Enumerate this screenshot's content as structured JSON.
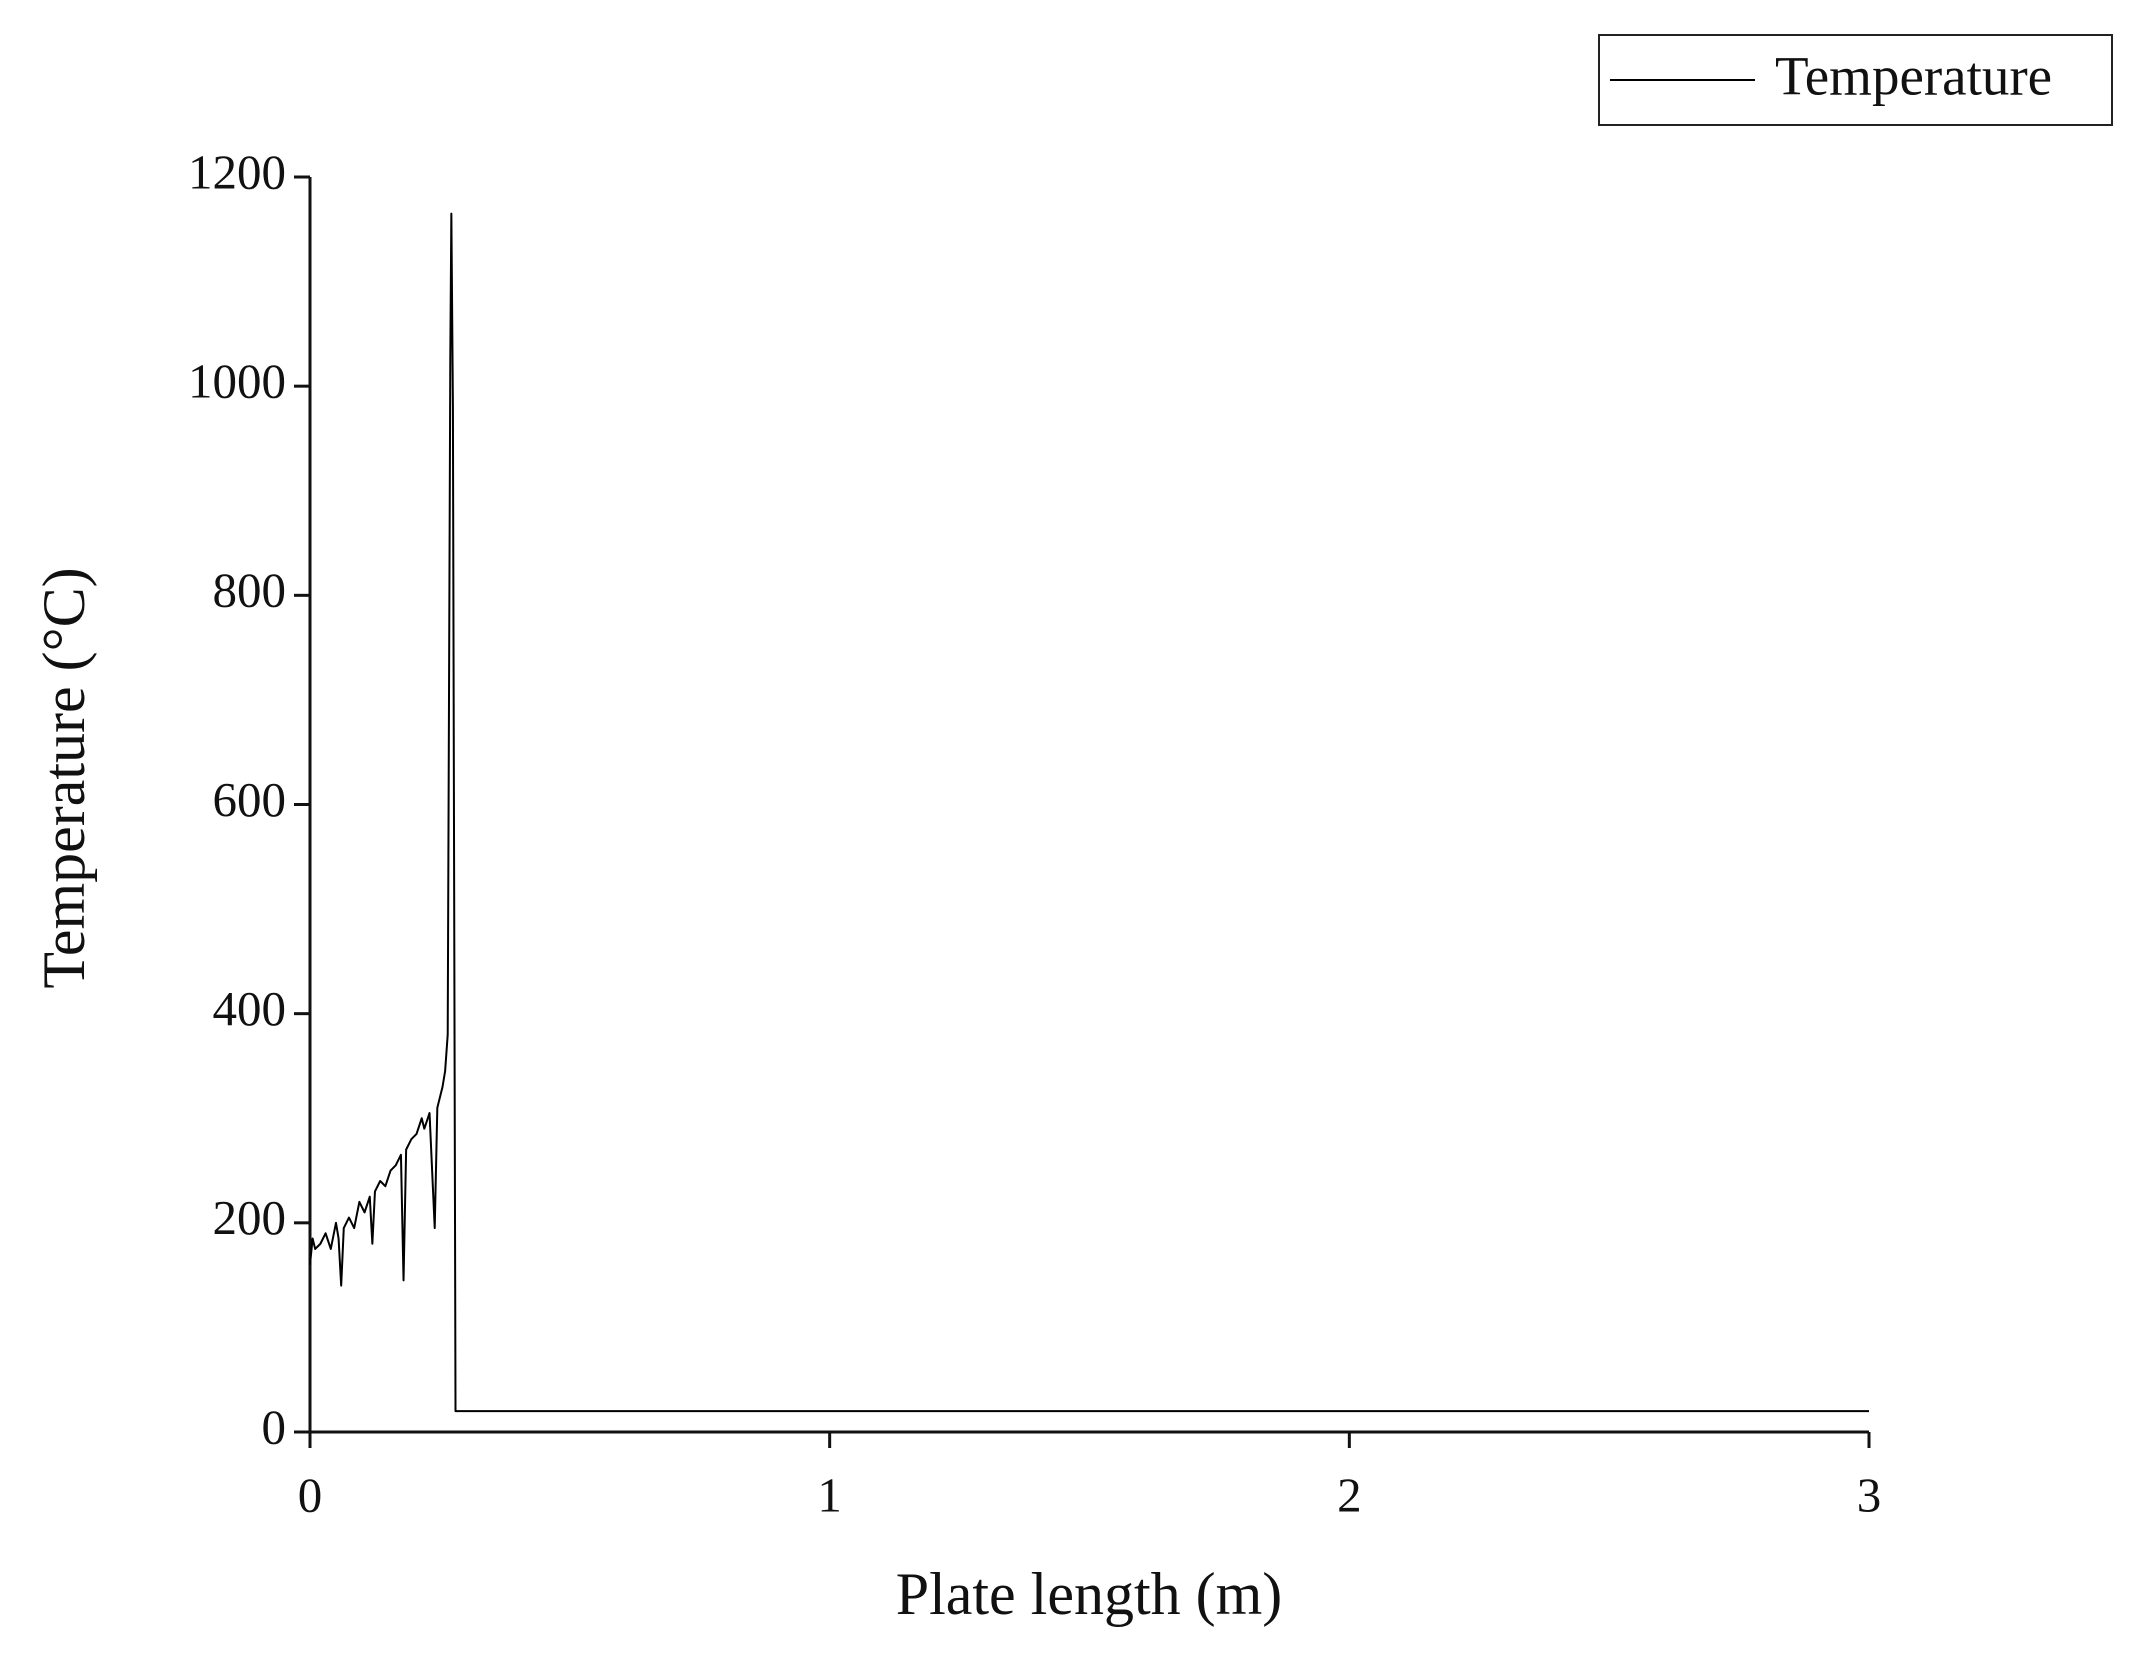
{
  "chart_data": {
    "type": "line",
    "x_label": "Plate length (m)",
    "y_label": "Temperature (°C)",
    "xlim": [
      0,
      3
    ],
    "xticks": [
      0,
      1,
      2,
      3
    ],
    "ylim": [
      0,
      1200
    ],
    "yticks": [
      0,
      200,
      400,
      600,
      800,
      1000,
      1200
    ],
    "legend_position": "upper right",
    "series": [
      {
        "name": "Temperature",
        "color": "#000000",
        "x": [
          0,
          0.005,
          0.01,
          0.02,
          0.03,
          0.04,
          0.05,
          0.055,
          0.06,
          0.065,
          0.075,
          0.085,
          0.095,
          0.105,
          0.115,
          0.12,
          0.125,
          0.135,
          0.145,
          0.155,
          0.165,
          0.175,
          0.18,
          0.185,
          0.195,
          0.205,
          0.215,
          0.22,
          0.23,
          0.24,
          0.245,
          0.255,
          0.26,
          0.265,
          0.27,
          0.272,
          0.275,
          0.28,
          3
        ],
        "values": [
          160,
          185,
          175,
          180,
          190,
          175,
          200,
          185,
          140,
          195,
          205,
          195,
          220,
          210,
          225,
          180,
          230,
          240,
          235,
          250,
          255,
          265,
          145,
          270,
          280,
          285,
          300,
          290,
          305,
          195,
          310,
          330,
          345,
          380,
          1030,
          1165,
          980,
          20,
          20
        ]
      }
    ]
  }
}
